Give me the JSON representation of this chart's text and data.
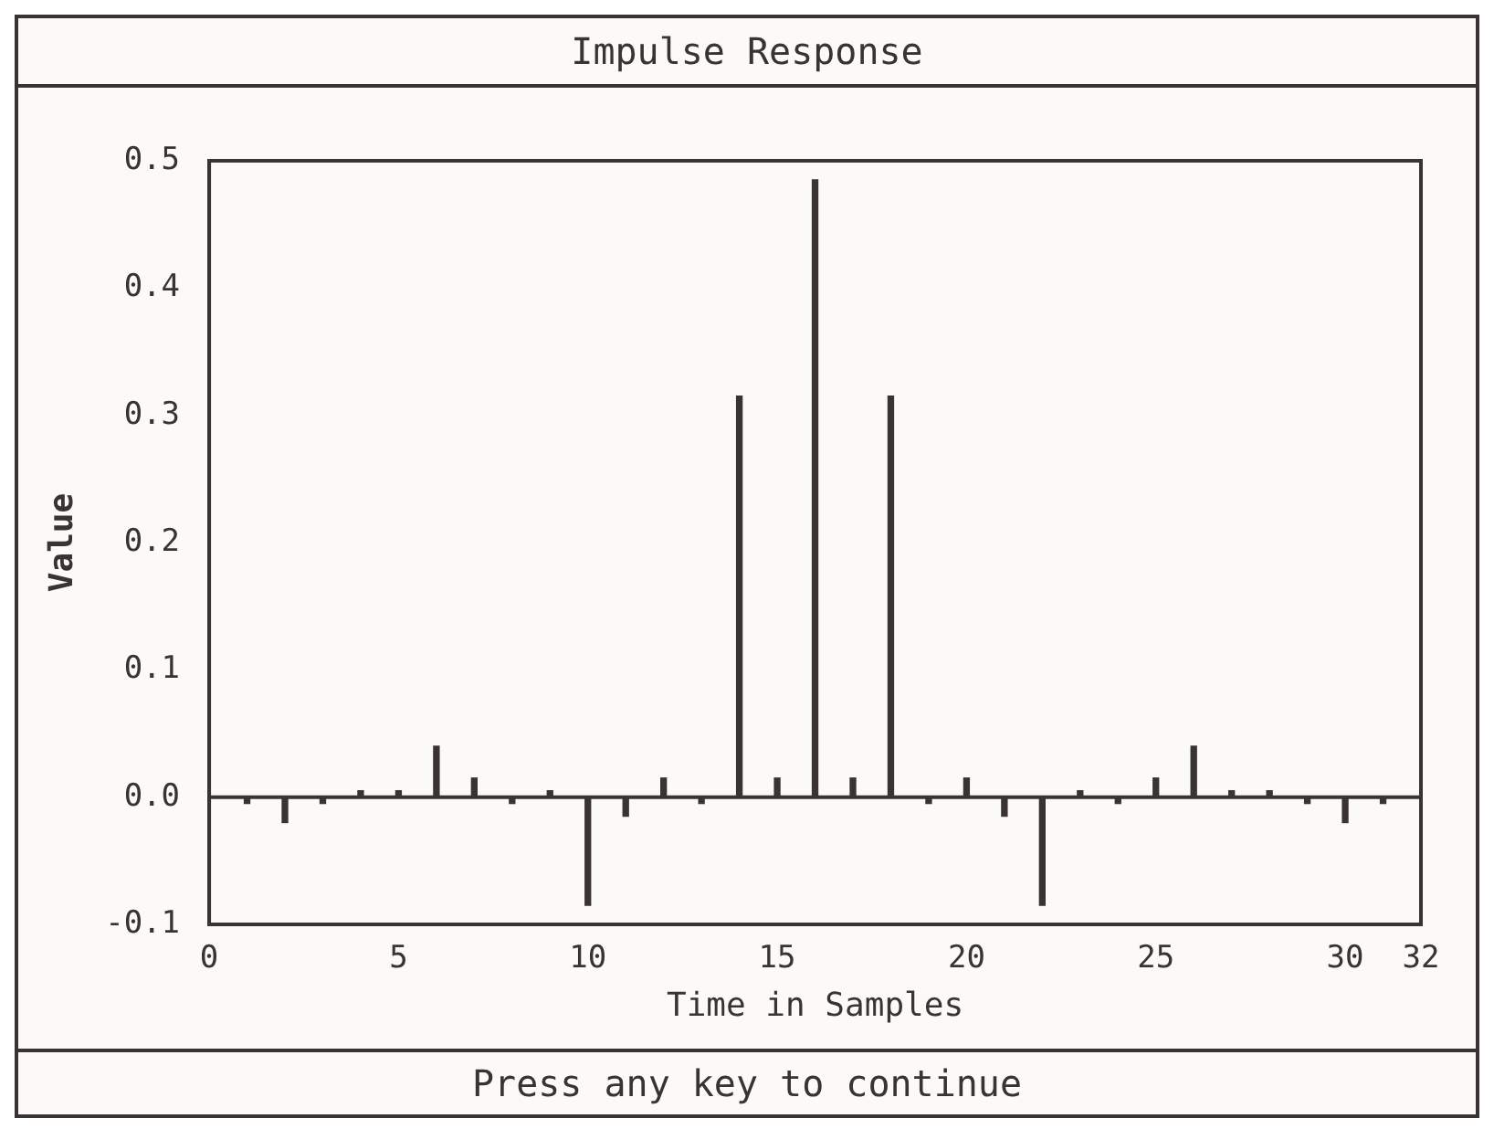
{
  "chart_data": {
    "type": "bar",
    "title": "Impulse Response",
    "xlabel": "Time in Samples",
    "ylabel": "Value",
    "annotations": [
      "Press any key to continue"
    ],
    "x": [
      0,
      1,
      2,
      3,
      4,
      5,
      6,
      7,
      8,
      9,
      10,
      11,
      12,
      13,
      14,
      15,
      16,
      17,
      18,
      19,
      20,
      21,
      22,
      23,
      24,
      25,
      26,
      27,
      28,
      29,
      30,
      31,
      32
    ],
    "values": [
      0,
      -0.005,
      -0.02,
      -0.005,
      0.005,
      0.005,
      0.04,
      0.015,
      -0.005,
      0.005,
      -0.085,
      -0.015,
      0.015,
      -0.005,
      0.315,
      0.015,
      0.485,
      0.015,
      0.315,
      -0.005,
      0.015,
      -0.015,
      -0.085,
      0.005,
      -0.005,
      0.015,
      0.04,
      0.005,
      0.005,
      -0.005,
      -0.02,
      -0.005,
      0
    ],
    "color": "#3a3333",
    "xlim": [
      0,
      32
    ],
    "xticks": [
      0,
      5,
      10,
      15,
      20,
      25,
      30,
      32
    ],
    "ylim": [
      -0.1,
      0.5
    ],
    "yticks": [
      {
        "value": -0.1,
        "label": "-0.1"
      },
      {
        "value": 0,
        "label": "0.0"
      },
      0.1,
      0.2,
      0.3,
      0.4,
      0.5
    ],
    "ref_lines": [
      {
        "axis": "y",
        "value": 0
      }
    ],
    "grid": false,
    "legend": false
  }
}
